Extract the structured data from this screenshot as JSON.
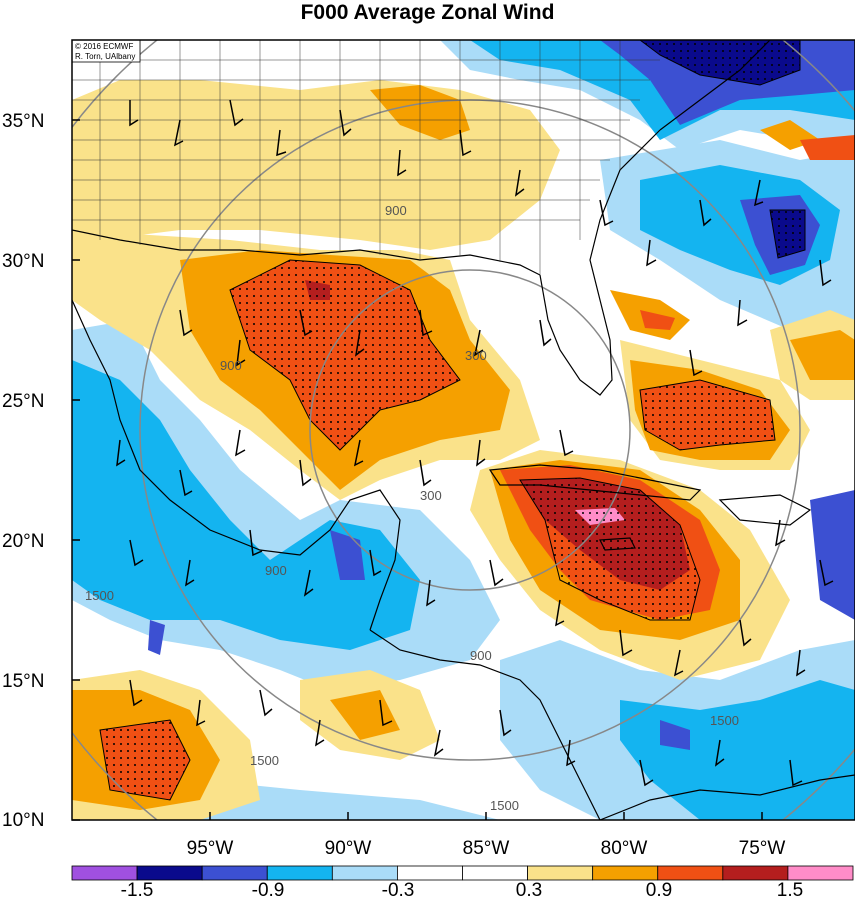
{
  "title": "F000 Average Zonal Wind",
  "credit": {
    "line1": "© 2016 ECMWF",
    "line2": "R. Torn, UAlbany"
  },
  "lat_labels": [
    "35°N",
    "30°N",
    "25°N",
    "20°N",
    "15°N",
    "10°N"
  ],
  "lat_values": [
    35,
    30,
    25,
    20,
    15,
    10
  ],
  "lon_labels": [
    "95°W",
    "90°W",
    "85°W",
    "80°W",
    "75°W"
  ],
  "lon_values": [
    -95,
    -90,
    -85,
    -80,
    -75
  ],
  "range_ring_labels": [
    "300",
    "300",
    "900",
    "900",
    "900",
    "900",
    "1500",
    "1500",
    "1500",
    "1500"
  ],
  "colorbar": {
    "labels": [
      "-1.5",
      "-0.9",
      "-0.3",
      "0.3",
      "0.9",
      "1.5"
    ],
    "colors": [
      "#a050e0",
      "#0a0a8c",
      "#3c50d2",
      "#14b4f0",
      "#aadcf8",
      "#ffffff",
      "#ffffff",
      "#fae28a",
      "#f5a000",
      "#f05014",
      "#b41e1e",
      "#ff8cc8"
    ]
  },
  "shading_colors": {
    "strong_neg": "#0a0a8c",
    "mod_neg": "#3c50d2",
    "neg": "#14b4f0",
    "weak_neg": "#aadcf8",
    "weak_pos": "#fae28a",
    "pos": "#f5a000",
    "mod_pos": "#f05014",
    "strong_pos": "#b41e1e",
    "extreme_pos": "#ff8cc8"
  }
}
